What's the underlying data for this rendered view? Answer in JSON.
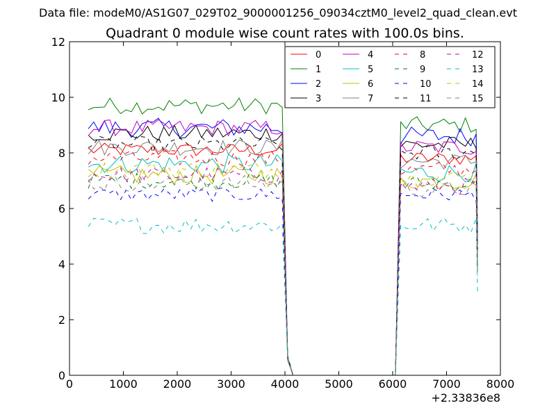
{
  "figure": {
    "suptitle": "Data file: modeM0/AS1G07_029T02_9000001256_09034cztM0_level2_quad_clean.evt",
    "title": "Quadrant 0 module wise count rates with 100.0s bins.",
    "x_offset_label": "+2.33836e8"
  },
  "chart_data": {
    "type": "line",
    "title": "Quadrant 0 module wise count rates with 100.0s bins.",
    "xlabel": "",
    "ylabel": "",
    "xlim": [
      0,
      8000
    ],
    "ylim": [
      0,
      12
    ],
    "xticks": [
      0,
      1000,
      2000,
      3000,
      4000,
      5000,
      6000,
      7000,
      8000
    ],
    "xtick_labels": [
      "0",
      "1000",
      "2000",
      "3000",
      "4000",
      "5000",
      "6000",
      "7000",
      "8000"
    ],
    "yticks": [
      0,
      2,
      4,
      6,
      8,
      10,
      12
    ],
    "ytick_labels": [
      "0",
      "2",
      "4",
      "6",
      "8",
      "10",
      "12"
    ],
    "grid": false,
    "legend_position": "top-right",
    "legend_columns": 4,
    "x_offset": 233836000,
    "segments": [
      {
        "start": 350,
        "end": 3950
      },
      {
        "start": 6150,
        "end": 7550
      }
    ],
    "step": 100,
    "series": [
      {
        "name": "0",
        "color": "#ff0000",
        "dash": "solid",
        "level1": 8.1,
        "level2": 7.8,
        "noise": 0.25
      },
      {
        "name": "1",
        "color": "#008000",
        "dash": "solid",
        "level1": 9.7,
        "level2": 9.0,
        "noise": 0.3
      },
      {
        "name": "2",
        "color": "#0000ff",
        "dash": "solid",
        "level1": 8.9,
        "level2": 8.6,
        "noise": 0.35
      },
      {
        "name": "3",
        "color": "#000000",
        "dash": "solid",
        "level1": 8.7,
        "level2": 8.3,
        "noise": 0.3
      },
      {
        "name": "4",
        "color": "#bf00bf",
        "dash": "solid",
        "level1": 8.9,
        "level2": 8.2,
        "noise": 0.3
      },
      {
        "name": "5",
        "color": "#00bfbf",
        "dash": "solid",
        "level1": 7.6,
        "level2": 7.3,
        "noise": 0.35
      },
      {
        "name": "6",
        "color": "#bfbf00",
        "dash": "solid",
        "level1": 7.2,
        "level2": 7.0,
        "noise": 0.35
      },
      {
        "name": "7",
        "color": "#808080",
        "dash": "solid",
        "level1": 8.2,
        "level2": 7.7,
        "noise": 0.3
      },
      {
        "name": "8",
        "color": "#ff0000",
        "dash": "dashed",
        "level1": 7.8,
        "level2": 7.4,
        "noise": 0.3
      },
      {
        "name": "9",
        "color": "#008000",
        "dash": "dashed",
        "level1": 7.0,
        "level2": 6.9,
        "noise": 0.3
      },
      {
        "name": "10",
        "color": "#0000ff",
        "dash": "dashed",
        "level1": 6.5,
        "level2": 6.5,
        "noise": 0.25
      },
      {
        "name": "11",
        "color": "#000000",
        "dash": "dashed",
        "level1": 8.3,
        "level2": 8.0,
        "noise": 0.3
      },
      {
        "name": "12",
        "color": "#bf00bf",
        "dash": "dashed",
        "level1": 7.2,
        "level2": 6.8,
        "noise": 0.3
      },
      {
        "name": "13",
        "color": "#00bfbf",
        "dash": "dashed",
        "level1": 5.4,
        "level2": 5.4,
        "noise": 0.3
      },
      {
        "name": "14",
        "color": "#bfbf00",
        "dash": "dashed",
        "level1": 7.4,
        "level2": 7.1,
        "noise": 0.3
      },
      {
        "name": "15",
        "color": "#808080",
        "dash": "dashed",
        "level1": 6.9,
        "level2": 6.7,
        "noise": 0.3
      }
    ]
  }
}
